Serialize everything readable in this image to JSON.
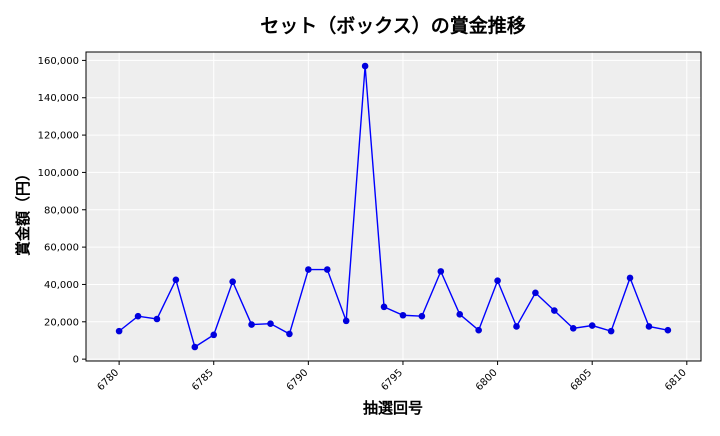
{
  "chart_data": {
    "type": "line",
    "title": "セット（ボックス）の賞金推移",
    "xlabel": "抽選回号",
    "ylabel": "賞金額（円）",
    "xlim": [
      6778.25,
      6810.75
    ],
    "ylim": [
      -1000,
      164500
    ],
    "xticks": [
      6780,
      6785,
      6790,
      6795,
      6800,
      6805,
      6810
    ],
    "yticks": [
      0,
      20000,
      40000,
      60000,
      80000,
      100000,
      120000,
      140000,
      160000
    ],
    "ytick_labels": [
      "0",
      "20,000",
      "40,000",
      "60,000",
      "80,000",
      "100,000",
      "120,000",
      "140,000",
      "160,000"
    ],
    "grid": true,
    "colors": {
      "line": "#0000ff",
      "marker": "#0000dd",
      "plot_bg": "#eeeeee",
      "grid": "#ffffff"
    },
    "series": [
      {
        "x": [
          6780,
          6781,
          6782,
          6783,
          6784,
          6785,
          6786,
          6787,
          6788,
          6789,
          6790,
          6791,
          6792,
          6793,
          6794,
          6795,
          6796,
          6797,
          6798,
          6799,
          6800,
          6801,
          6802,
          6803,
          6804,
          6805,
          6806,
          6807,
          6808,
          6809
        ],
        "y": [
          15000,
          23000,
          21500,
          42500,
          6500,
          13000,
          41500,
          18500,
          19000,
          13500,
          48000,
          48000,
          20500,
          157000,
          28000,
          23500,
          23000,
          47000,
          24000,
          15500,
          42000,
          17500,
          35500,
          26000,
          16500,
          18000,
          15000,
          43500,
          17500,
          15500
        ]
      }
    ]
  }
}
